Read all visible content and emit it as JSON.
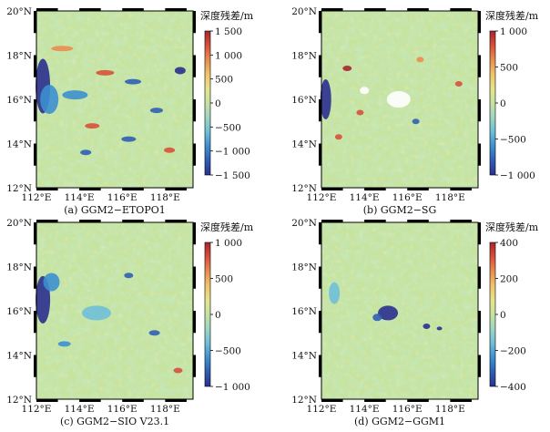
{
  "chart_data": [
    {
      "type": "heatmap",
      "caption": "(a) GGM2−ETOPO1",
      "colorbar_title": "深度残差/m",
      "colorbar_range": [
        -1500,
        1500
      ],
      "colorbar_ticks": [
        "1 500",
        "1 000",
        "500",
        "0",
        "−500",
        "−1 000",
        "−1 500"
      ],
      "colorbar_values": [
        1500,
        1000,
        500,
        0,
        -500,
        -1000,
        -1500
      ],
      "x_ticks": [
        "112°E",
        "114°E",
        "116°E",
        "118°E"
      ],
      "x_values": [
        112,
        114,
        116,
        118
      ],
      "y_ticks": [
        "20°N",
        "18°N",
        "16°N",
        "14°N",
        "12°N"
      ],
      "y_values": [
        20,
        18,
        16,
        14,
        12
      ],
      "xlim": [
        112,
        119.3
      ],
      "ylim": [
        12,
        20
      ]
    },
    {
      "type": "heatmap",
      "caption": "(b) GGM2−SG",
      "colorbar_title": "深度残差/m",
      "colorbar_range": [
        -1000,
        1000
      ],
      "colorbar_ticks": [
        "1 000",
        "500",
        "0",
        "−500",
        "−1 000"
      ],
      "colorbar_values": [
        1000,
        500,
        0,
        -500,
        -1000
      ],
      "x_ticks": [
        "112°E",
        "114°E",
        "116°E",
        "118°E"
      ],
      "x_values": [
        112,
        114,
        116,
        118
      ],
      "y_ticks": [
        "20°N",
        "18°N",
        "16°N",
        "14°N",
        "12°N"
      ],
      "y_values": [
        20,
        18,
        16,
        14,
        12
      ],
      "xlim": [
        112,
        119.3
      ],
      "ylim": [
        12,
        20
      ]
    },
    {
      "type": "heatmap",
      "caption": "(c) GGM2−SIO V23.1",
      "colorbar_title": "深度残差/m",
      "colorbar_range": [
        -1000,
        1000
      ],
      "colorbar_ticks": [
        "1 000",
        "500",
        "0",
        "−500",
        "−1 000"
      ],
      "colorbar_values": [
        1000,
        500,
        0,
        -500,
        -1000
      ],
      "x_ticks": [
        "112°E",
        "114°E",
        "116°E",
        "118°E"
      ],
      "x_values": [
        112,
        114,
        116,
        118
      ],
      "y_ticks": [
        "20°N",
        "18°N",
        "16°N",
        "14°N",
        "12°N"
      ],
      "y_values": [
        20,
        18,
        16,
        14,
        12
      ],
      "xlim": [
        112,
        119.3
      ],
      "ylim": [
        12,
        20
      ]
    },
    {
      "type": "heatmap",
      "caption": "(d) GGM2−GGM1",
      "colorbar_title": "深度残差/m",
      "colorbar_range": [
        -400,
        400
      ],
      "colorbar_ticks": [
        "400",
        "200",
        "0",
        "−200",
        "−400"
      ],
      "colorbar_values": [
        400,
        200,
        0,
        -200,
        -400
      ],
      "x_ticks": [
        "112°E",
        "114°E",
        "116°E",
        "118°E"
      ],
      "x_values": [
        112,
        114,
        116,
        118
      ],
      "y_ticks": [
        "20°N",
        "18°N",
        "16°N",
        "14°N",
        "12°N"
      ],
      "y_values": [
        20,
        18,
        16,
        14,
        12
      ],
      "xlim": [
        112,
        119.3
      ],
      "ylim": [
        12,
        20
      ]
    }
  ],
  "colorscale": [
    "#2b2f8f",
    "#2f5fb5",
    "#3d8fd0",
    "#6fbfd8",
    "#9fd6c0",
    "#c6e3a0",
    "#e7e48a",
    "#f0c46a",
    "#e98d4f",
    "#d8503a",
    "#a8262e"
  ]
}
